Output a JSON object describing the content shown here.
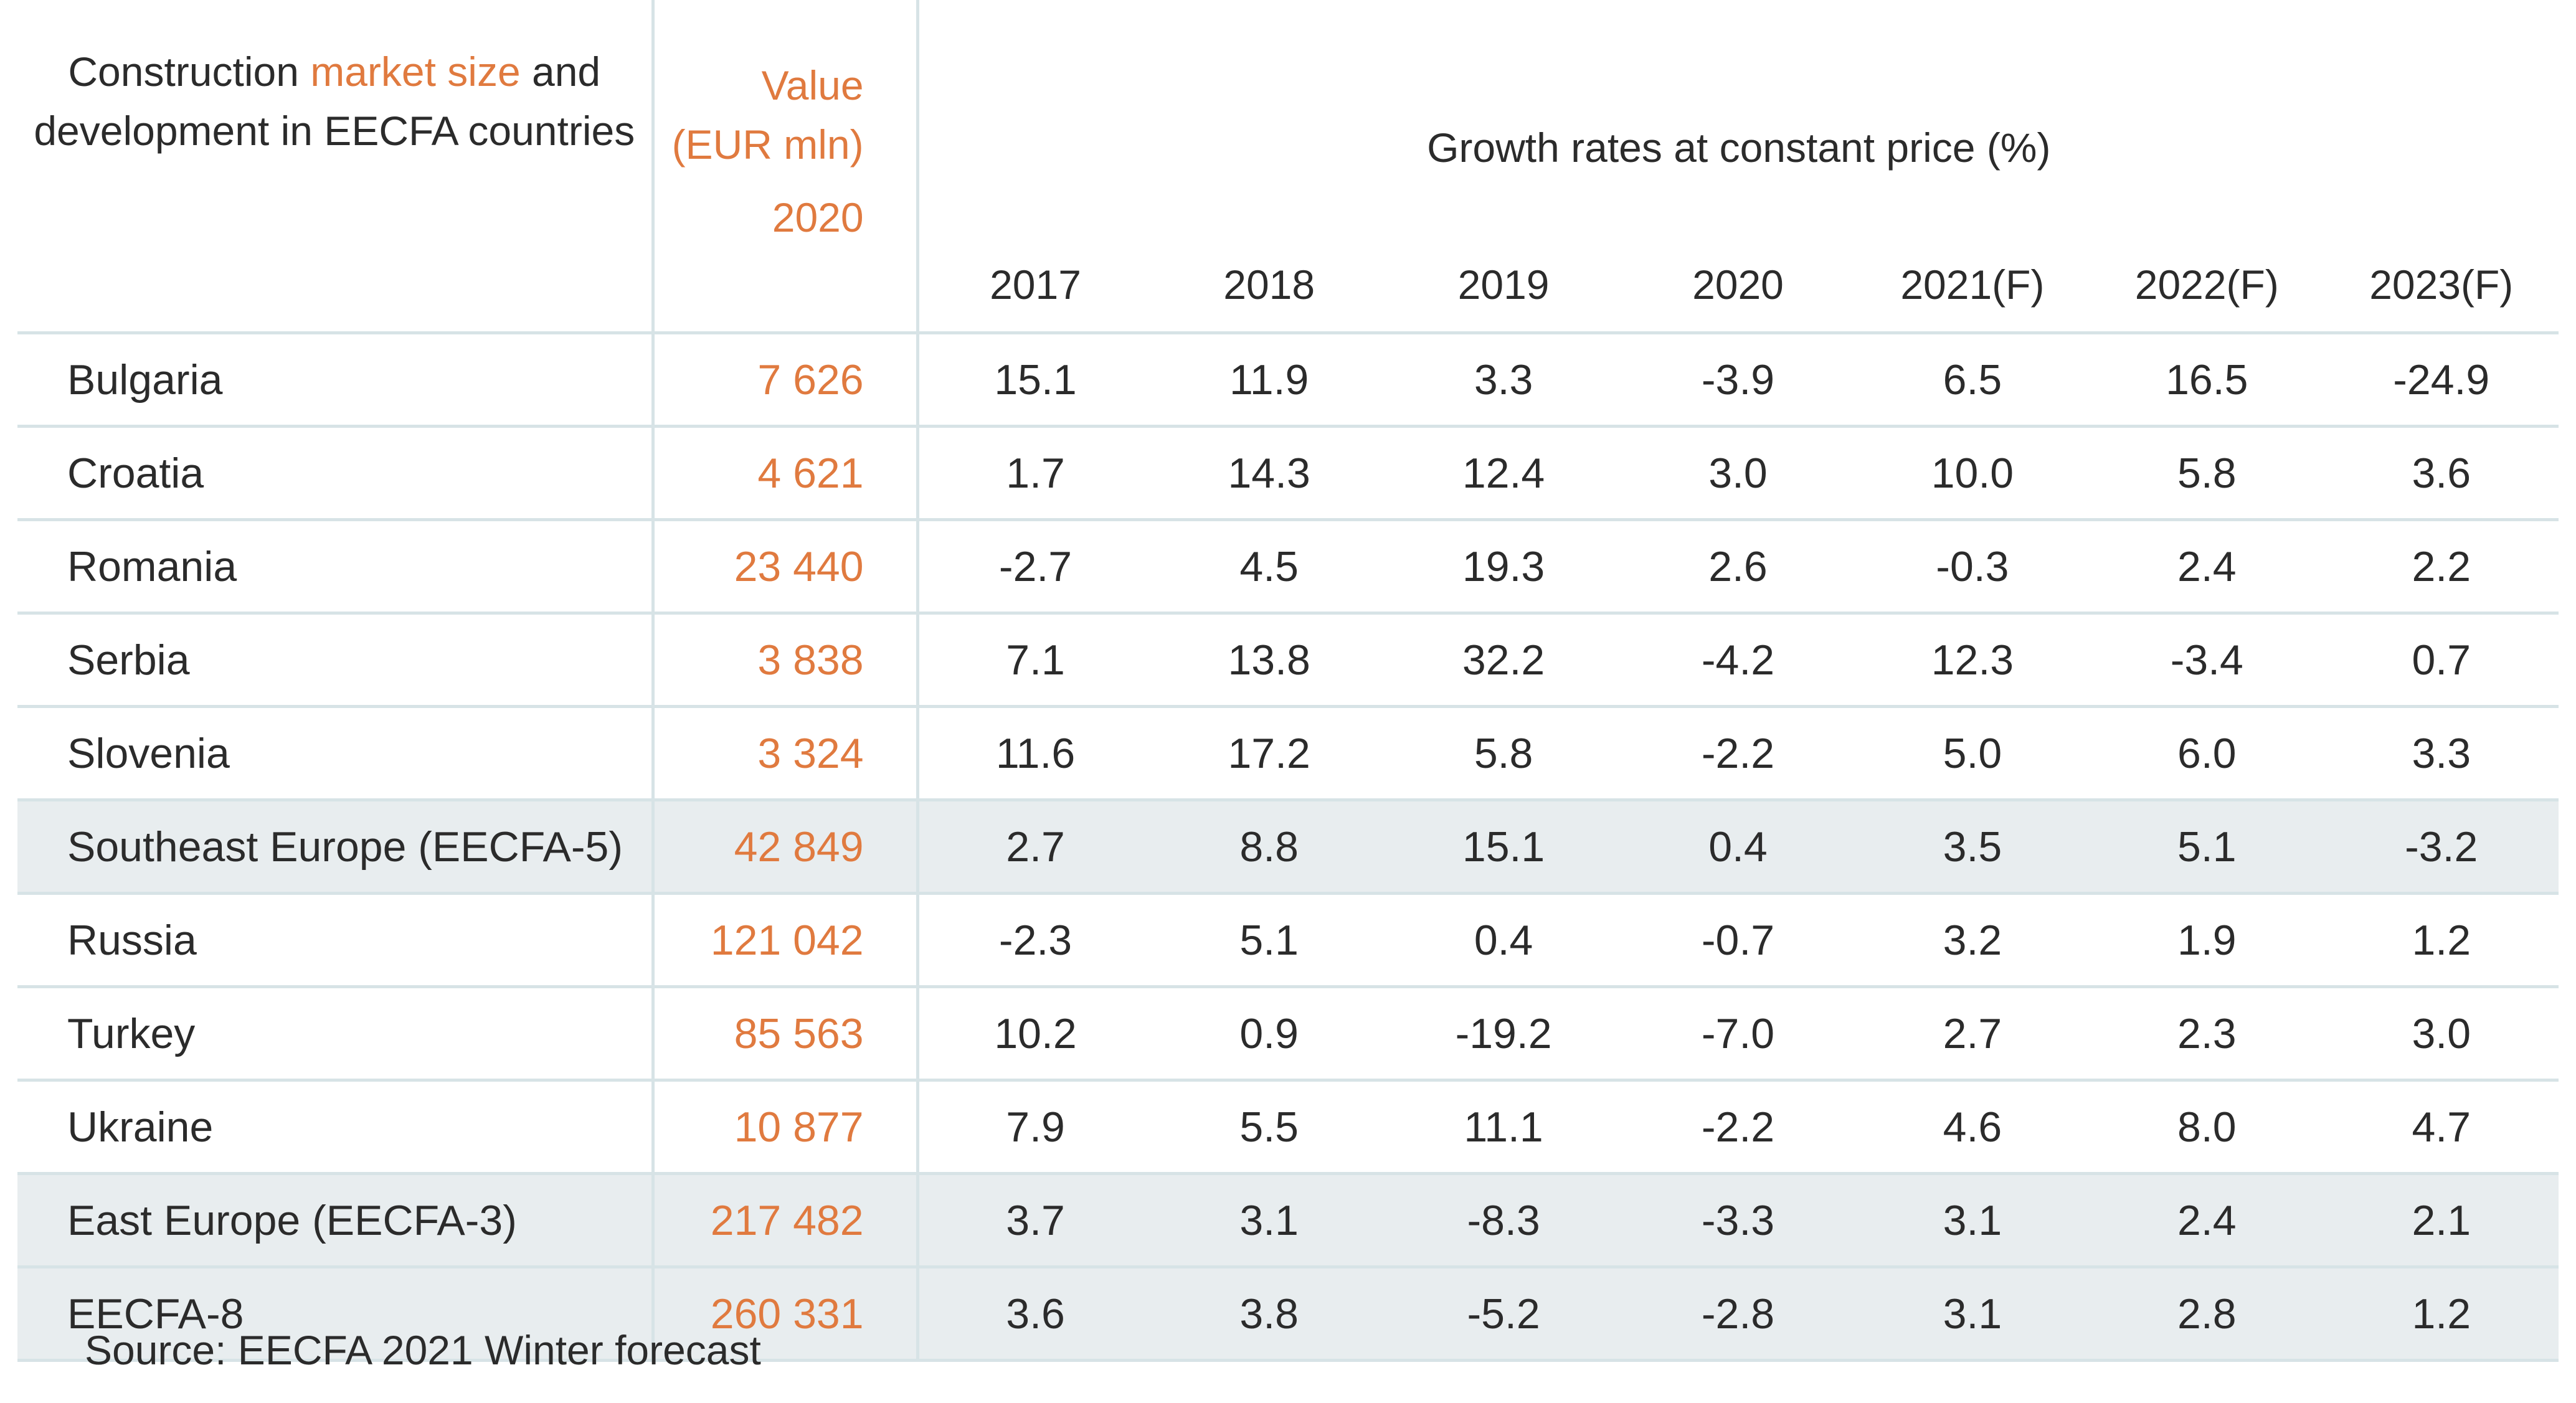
{
  "chart_data": {
    "type": "table",
    "header": {
      "country_title_before": "Construction ",
      "country_title_accent": "market size",
      "country_title_after": " and development in EECFA countries",
      "value_title": "Value (EUR mln)",
      "value_year": "2020",
      "growth_title": "Growth rates at constant price (%)",
      "years": [
        "2017",
        "2018",
        "2019",
        "2020",
        "2021(F)",
        "2022(F)",
        "2023(F)"
      ]
    },
    "rows": [
      {
        "country": "Bulgaria",
        "value": "7 626",
        "growth": [
          "15.1",
          "11.9",
          "3.3",
          "-3.9",
          "6.5",
          "16.5",
          "-24.9"
        ],
        "aggregate": false
      },
      {
        "country": "Croatia",
        "value": "4 621",
        "growth": [
          "1.7",
          "14.3",
          "12.4",
          "3.0",
          "10.0",
          "5.8",
          "3.6"
        ],
        "aggregate": false
      },
      {
        "country": "Romania",
        "value": "23 440",
        "growth": [
          "-2.7",
          "4.5",
          "19.3",
          "2.6",
          "-0.3",
          "2.4",
          "2.2"
        ],
        "aggregate": false
      },
      {
        "country": "Serbia",
        "value": "3 838",
        "growth": [
          "7.1",
          "13.8",
          "32.2",
          "-4.2",
          "12.3",
          "-3.4",
          "0.7"
        ],
        "aggregate": false
      },
      {
        "country": "Slovenia",
        "value": "3 324",
        "growth": [
          "11.6",
          "17.2",
          "5.8",
          "-2.2",
          "5.0",
          "6.0",
          "3.3"
        ],
        "aggregate": false
      },
      {
        "country": "Southeast Europe (EECFA-5)",
        "value": "42 849",
        "growth": [
          "2.7",
          "8.8",
          "15.1",
          "0.4",
          "3.5",
          "5.1",
          "-3.2"
        ],
        "aggregate": true
      },
      {
        "country": "Russia",
        "value": "121 042",
        "growth": [
          "-2.3",
          "5.1",
          "0.4",
          "-0.7",
          "3.2",
          "1.9",
          "1.2"
        ],
        "aggregate": false
      },
      {
        "country": "Turkey",
        "value": "85 563",
        "growth": [
          "10.2",
          "0.9",
          "-19.2",
          "-7.0",
          "2.7",
          "2.3",
          "3.0"
        ],
        "aggregate": false
      },
      {
        "country": "Ukraine",
        "value": "10 877",
        "growth": [
          "7.9",
          "5.5",
          "11.1",
          "-2.2",
          "4.6",
          "8.0",
          "4.7"
        ],
        "aggregate": false
      },
      {
        "country": "East Europe (EECFA-3)",
        "value": "217 482",
        "growth": [
          "3.7",
          "3.1",
          "-8.3",
          "-3.3",
          "3.1",
          "2.4",
          "2.1"
        ],
        "aggregate": true
      },
      {
        "country": "EECFA-8",
        "value": "260 331",
        "growth": [
          "3.6",
          "3.8",
          "-5.2",
          "-2.8",
          "3.1",
          "2.8",
          "1.2"
        ],
        "aggregate": true
      }
    ],
    "source": "Source: EECFA 2021 Winter forecast"
  },
  "colors": {
    "accent": "#e07a3f",
    "aggregate_row_bg": "#e8edef",
    "rule": "#d7e3e6",
    "text": "#2b2b2b"
  }
}
